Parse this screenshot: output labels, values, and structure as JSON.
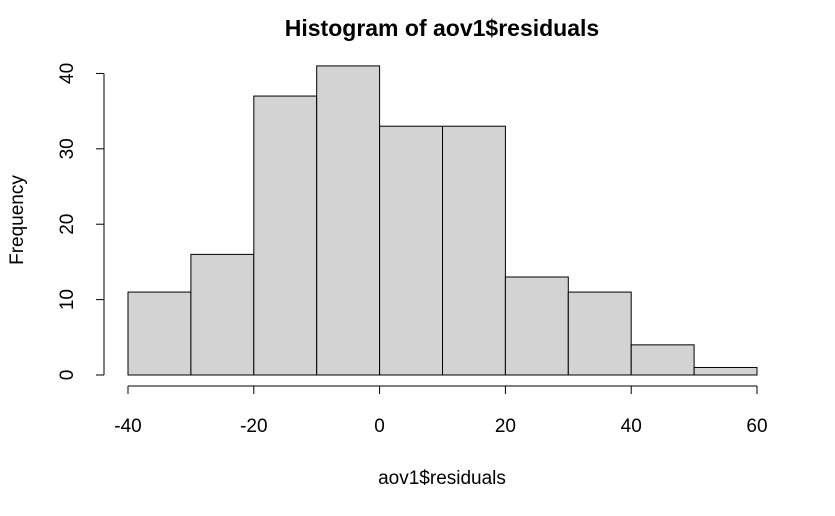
{
  "chart_data": {
    "type": "bar",
    "subtype": "histogram",
    "title": "Histogram of aov1$residuals",
    "xlabel": "aov1$residuals",
    "ylabel": "Frequency",
    "bins": [
      {
        "x0": -40,
        "x1": -30,
        "count": 11
      },
      {
        "x0": -30,
        "x1": -20,
        "count": 16
      },
      {
        "x0": -20,
        "x1": -10,
        "count": 37
      },
      {
        "x0": -10,
        "x1": 0,
        "count": 41
      },
      {
        "x0": 0,
        "x1": 10,
        "count": 33
      },
      {
        "x0": 10,
        "x1": 20,
        "count": 33
      },
      {
        "x0": 20,
        "x1": 30,
        "count": 13
      },
      {
        "x0": 30,
        "x1": 40,
        "count": 11
      },
      {
        "x0": 40,
        "x1": 50,
        "count": 4
      },
      {
        "x0": 50,
        "x1": 60,
        "count": 1
      }
    ],
    "xlim": [
      -40,
      60
    ],
    "ylim": [
      0,
      41
    ],
    "x_ticks": [
      "-40",
      "-20",
      "0",
      "20",
      "40",
      "60"
    ],
    "y_ticks": [
      "0",
      "10",
      "20",
      "30",
      "40"
    ],
    "bar_color": "#d3d3d3",
    "border_color": "#000000",
    "grid": false
  }
}
